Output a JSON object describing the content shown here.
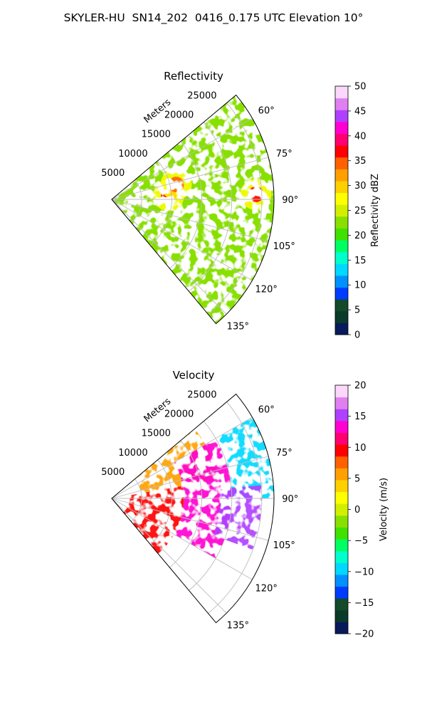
{
  "title": "SKYLER-HU  SN14_202  0416_0.175 UTC Elevation 10°",
  "chart_data": [
    {
      "type": "heatmap",
      "projection": "polar sector (PPI)",
      "title": "Reflectivity",
      "range_axis_label": "Meters",
      "range_ticks": [
        "5000",
        "10000",
        "15000",
        "20000",
        "25000"
      ],
      "range_max": 27000,
      "azimuth_range_deg": [
        50,
        140
      ],
      "azimuth_ticks": [
        "60°",
        "75°",
        "90°",
        "105°",
        "120°",
        "135°"
      ],
      "grid": true,
      "colorbar": {
        "label": "Reflectivity dBZ",
        "range": [
          0,
          50
        ],
        "ticks": [
          "0",
          "5",
          "10",
          "15",
          "20",
          "25",
          "30",
          "35",
          "40",
          "45",
          "50"
        ],
        "colors": [
          "#071a5c",
          "#0a3a28",
          "#124a2a",
          "#003cff",
          "#0090ff",
          "#00d8ff",
          "#00ffcc",
          "#00ff60",
          "#40e000",
          "#88e000",
          "#d0f000",
          "#ffff00",
          "#ffd000",
          "#ffa000",
          "#ff6000",
          "#ff0000",
          "#ff0070",
          "#ff00d0",
          "#b040ff",
          "#e080f0",
          "#fbd8fb"
        ]
      },
      "dominant_value_range": [
        15,
        28
      ],
      "high_value_cores": [
        {
          "azimuth_deg": 88,
          "range_m": 24000,
          "value": 36
        },
        {
          "azimuth_deg": 86,
          "range_m": 9500,
          "value": 37
        },
        {
          "azimuth_deg": 77,
          "range_m": 11000,
          "value": 35
        }
      ]
    },
    {
      "type": "heatmap",
      "projection": "polar sector (PPI)",
      "title": "Velocity",
      "range_axis_label": "Meters",
      "range_ticks": [
        "5000",
        "10000",
        "15000",
        "20000",
        "25000"
      ],
      "range_max": 27000,
      "azimuth_range_deg": [
        50,
        140
      ],
      "azimuth_ticks": [
        "60°",
        "75°",
        "90°",
        "105°",
        "120°",
        "135°"
      ],
      "grid": true,
      "colorbar": {
        "label": "Velocity (m/s)",
        "range": [
          -20,
          20
        ],
        "ticks": [
          "−20",
          "−15",
          "−10",
          "−5",
          "0",
          "5",
          "10",
          "15",
          "20"
        ],
        "colors": [
          "#071a5c",
          "#0a3a28",
          "#124a2a",
          "#003cff",
          "#0090ff",
          "#00d8ff",
          "#00ffcc",
          "#00ff60",
          "#40e000",
          "#88e000",
          "#d0f000",
          "#ffff00",
          "#ffd000",
          "#ffa000",
          "#ff6000",
          "#ff0000",
          "#ff0070",
          "#ff00d0",
          "#b040ff",
          "#e080f0",
          "#fbd8fb"
        ]
      },
      "regions": [
        {
          "azimuth_deg": [
            50,
            80
          ],
          "range_m": [
            5000,
            18000
          ],
          "value": 5
        },
        {
          "azimuth_deg": [
            80,
            140
          ],
          "range_m": [
            3000,
            12000
          ],
          "value": 10
        },
        {
          "azimuth_deg": [
            60,
            120
          ],
          "range_m": [
            12000,
            20000
          ],
          "value": 14
        },
        {
          "azimuth_deg": [
            60,
            90
          ],
          "range_m": [
            20000,
            27000
          ],
          "value": -10
        },
        {
          "azimuth_deg": [
            85,
            110
          ],
          "range_m": [
            18000,
            25000
          ],
          "value": 15
        }
      ]
    }
  ]
}
